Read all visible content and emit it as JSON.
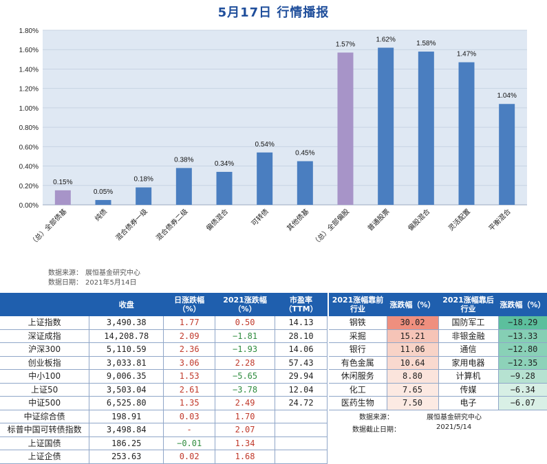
{
  "page_title": "5月17日  行情播报",
  "chart_data": {
    "type": "bar",
    "categories": [
      "（总）全部债基",
      "纯债",
      "混合债券一级",
      "混合债券二级",
      "偏债混合",
      "可转债",
      "其他债基",
      "（总）全部偏股",
      "普通股票",
      "偏股混合",
      "灵活配置",
      "平衡混合"
    ],
    "values": [
      0.15,
      0.05,
      0.18,
      0.38,
      0.34,
      0.54,
      0.45,
      1.57,
      1.62,
      1.58,
      1.47,
      1.04
    ],
    "data_labels": [
      "0.15%",
      "0.05%",
      "0.18%",
      "0.38%",
      "0.34%",
      "0.54%",
      "0.45%",
      "1.57%",
      "1.62%",
      "1.58%",
      "1.47%",
      "1.04%"
    ],
    "highlight_indices": [
      0,
      7
    ],
    "ylim": [
      0,
      1.8
    ],
    "yticks": [
      "0.00%",
      "0.20%",
      "0.40%",
      "0.60%",
      "0.80%",
      "1.00%",
      "1.20%",
      "1.40%",
      "1.60%",
      "1.80%"
    ],
    "colors": {
      "bar": "#4a7ec0",
      "highlight": "#a794c8",
      "plot_bg": "#dfe8f3",
      "grid": "#c7d3e3"
    },
    "grid": true
  },
  "source": {
    "src_key": "数据来源：",
    "src_val": "展恒基金研究中心",
    "date_key": "数据日期：",
    "date_val": "2021年5月14日"
  },
  "left_table": {
    "headers": [
      "",
      "收盘",
      "日涨跌幅\n（%）",
      "2021涨跌幅\n（%）",
      "市盈率\n（TTM）"
    ],
    "rows": [
      {
        "name": "上证指数",
        "close": "3,490.38",
        "day": "1.77",
        "ytd": "0.50",
        "pe": "14.13",
        "day_dir": "up",
        "ytd_dir": "up"
      },
      {
        "name": "深证成指",
        "close": "14,208.78",
        "day": "2.09",
        "ytd": "−1.81",
        "pe": "28.10",
        "day_dir": "up",
        "ytd_dir": "down"
      },
      {
        "name": "沪深300",
        "close": "5,110.59",
        "day": "2.36",
        "ytd": "−1.93",
        "pe": "14.06",
        "day_dir": "up",
        "ytd_dir": "down"
      },
      {
        "name": "创业板指",
        "close": "3,033.81",
        "day": "3.06",
        "ytd": "2.28",
        "pe": "57.43",
        "day_dir": "up",
        "ytd_dir": "up"
      },
      {
        "name": "中小100",
        "close": "9,006.35",
        "day": "1.53",
        "ytd": "−5.65",
        "pe": "29.94",
        "day_dir": "up",
        "ytd_dir": "down"
      },
      {
        "name": "上证50",
        "close": "3,503.04",
        "day": "2.61",
        "ytd": "−3.78",
        "pe": "12.04",
        "day_dir": "up",
        "ytd_dir": "down"
      },
      {
        "name": "中证500",
        "close": "6,525.80",
        "day": "1.35",
        "ytd": "2.49",
        "pe": "24.72",
        "day_dir": "up",
        "ytd_dir": "up"
      },
      {
        "name": "中证综合债",
        "close": "198.91",
        "day": "0.03",
        "ytd": "1.70",
        "pe": "",
        "day_dir": "up",
        "ytd_dir": "up"
      },
      {
        "name": "标普中国可转债指数",
        "close": "3,498.84",
        "day": "-",
        "ytd": "2.07",
        "pe": "",
        "day_dir": "up",
        "ytd_dir": "up"
      },
      {
        "name": "上证国债",
        "close": "186.25",
        "day": "−0.01",
        "ytd": "1.34",
        "pe": "",
        "day_dir": "down",
        "ytd_dir": "up"
      },
      {
        "name": "上证企债",
        "close": "253.63",
        "day": "0.02",
        "ytd": "1.68",
        "pe": "",
        "day_dir": "up",
        "ytd_dir": "up"
      }
    ]
  },
  "right_table": {
    "headers": [
      "2021涨幅靠前\n行业",
      "涨跌幅（%）",
      "2021涨幅靠后\n行业",
      "涨跌幅（%）"
    ],
    "rows": [
      {
        "top_ind": "钢铁",
        "top_val": "30.02",
        "bot_ind": "国防军工",
        "bot_val": "−18.29"
      },
      {
        "top_ind": "采掘",
        "top_val": "15.21",
        "bot_ind": "非银金融",
        "bot_val": "−13.33"
      },
      {
        "top_ind": "银行",
        "top_val": "11.06",
        "bot_ind": "通信",
        "bot_val": "−12.80"
      },
      {
        "top_ind": "有色金属",
        "top_val": "10.64",
        "bot_ind": "家用电器",
        "bot_val": "−12.35"
      },
      {
        "top_ind": "休闲服务",
        "top_val": "8.80",
        "bot_ind": "计算机",
        "bot_val": "−9.28"
      },
      {
        "top_ind": "化工",
        "top_val": "7.65",
        "bot_ind": "传媒",
        "bot_val": "−6.34"
      },
      {
        "top_ind": "医药生物",
        "top_val": "7.50",
        "bot_ind": "电子",
        "bot_val": "−6.07"
      }
    ],
    "top_colors": [
      "#ef8f7e",
      "#f6c4b7",
      "#f8d3c7",
      "#f9d9cf",
      "#fbe4dc",
      "#fce9e2",
      "#fceae3"
    ],
    "bot_colors": [
      "#5cbf9d",
      "#85cfb4",
      "#89d1b7",
      "#8dd2b9",
      "#b6e2d1",
      "#d7efe5",
      "#d9f0e6"
    ],
    "note_src_key": "数据来源：",
    "note_src_val": "展恒基金研究中心",
    "note_date_key": "数据截止日期：",
    "note_date_val": "2021/5/14"
  }
}
